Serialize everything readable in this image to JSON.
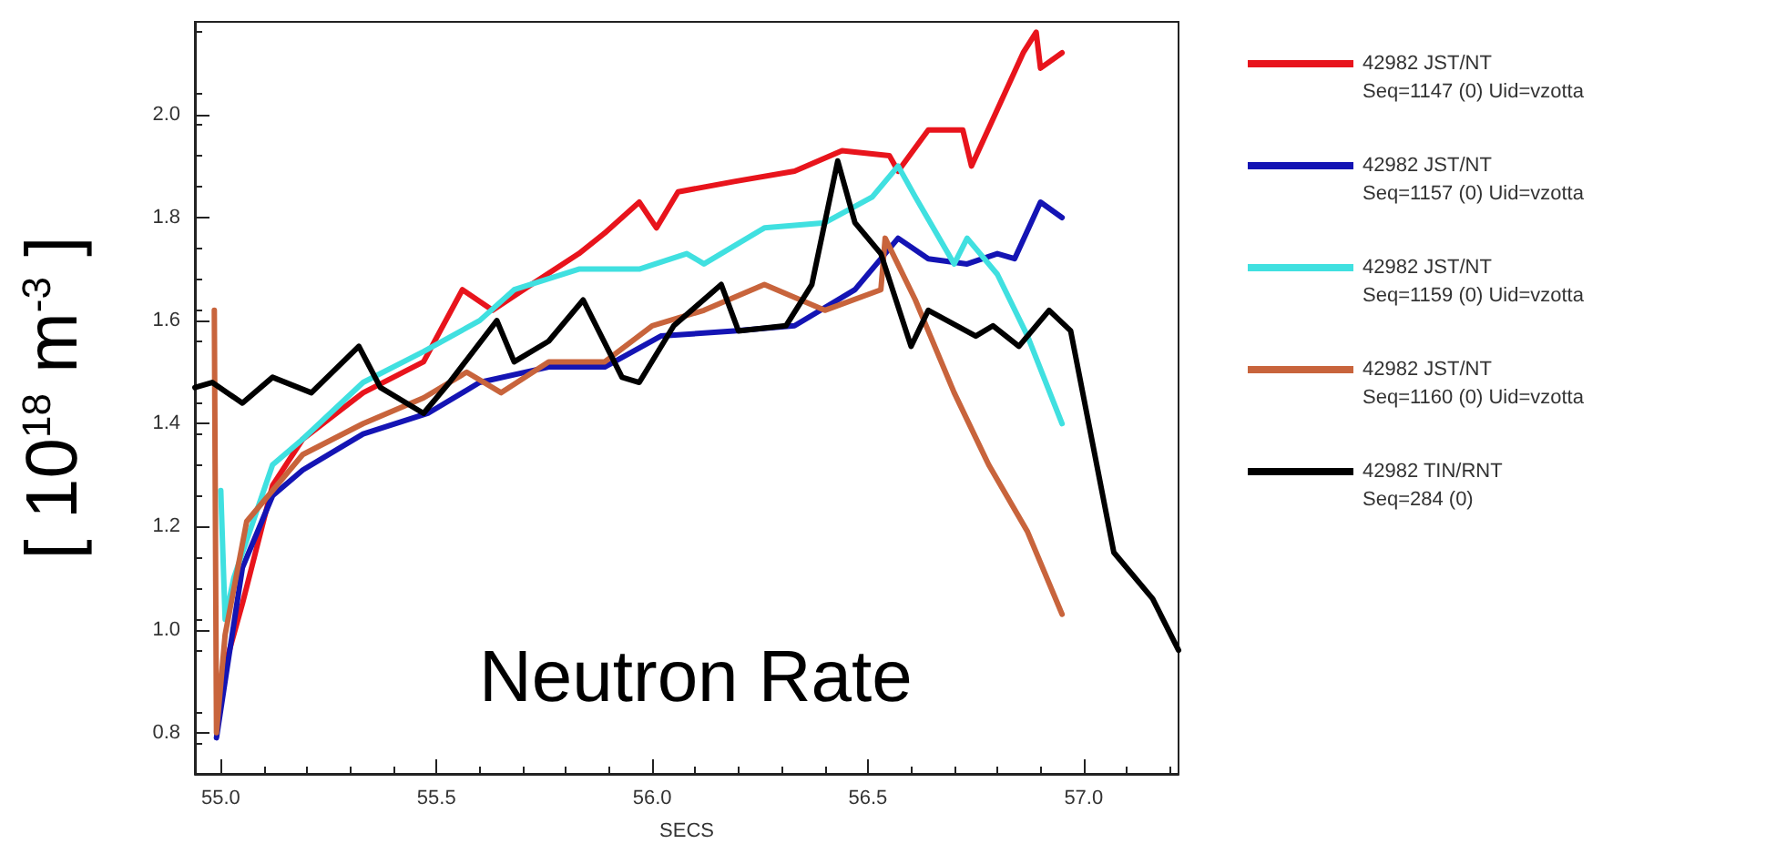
{
  "chart_data": {
    "type": "line",
    "xlabel": "SECS",
    "ylabel": "[ 10$^{18}$ m$^{-3}$ ]",
    "annotations": [
      "Neutron Rate",
      "Seq=1147 (0) Uid=vzotta",
      "Seq=1157 (0) Uid=vzotta",
      "Seq=1159 (0) Uid=vzotta",
      "Seq=1160 (0) Uid=vzotta",
      "Seq=284 (0)"
    ],
    "xlim": [
      54.94,
      57.22
    ],
    "ylim": [
      0.72,
      2.18
    ],
    "xticks": [
      {
        "value": 55,
        "label": "55.0"
      },
      55.5,
      {
        "value": 56,
        "label": "56.0"
      },
      56.5,
      {
        "value": 57,
        "label": "57.0"
      }
    ],
    "yticks": [
      0.8,
      {
        "value": 1,
        "label": "1.0"
      },
      1.2,
      1.4,
      1.6,
      1.8,
      {
        "value": 2,
        "label": "2.0"
      }
    ],
    "grid": false,
    "legend": "right",
    "marker": "none",
    "line_style": "solid",
    "series": [
      {
        "name": "42982 JST/NT",
        "color": "#e8141c",
        "x": [
          55.0,
          55.05,
          55.12,
          55.19,
          55.33,
          55.47,
          55.56,
          55.63,
          55.72,
          55.83,
          55.89,
          55.97,
          56.01,
          56.06,
          56.19,
          56.33,
          56.44,
          56.55,
          56.57,
          56.64,
          56.72,
          56.74,
          56.8,
          56.86,
          56.89,
          56.9,
          56.95
        ],
        "values": [
          0.9,
          1.05,
          1.28,
          1.37,
          1.46,
          1.52,
          1.66,
          1.62,
          1.67,
          1.73,
          1.77,
          1.83,
          1.78,
          1.85,
          1.87,
          1.89,
          1.93,
          1.92,
          1.89,
          1.97,
          1.97,
          1.9,
          2.01,
          2.12,
          2.16,
          2.09,
          2.12
        ]
      },
      {
        "name": "42982 JST/NT",
        "color": "#1414b4",
        "x": [
          54.99,
          55.05,
          55.12,
          55.19,
          55.33,
          55.48,
          55.6,
          55.76,
          55.89,
          56.02,
          56.19,
          56.33,
          56.47,
          56.57,
          56.64,
          56.73,
          56.8,
          56.84,
          56.9,
          56.95
        ],
        "values": [
          0.79,
          1.12,
          1.26,
          1.31,
          1.38,
          1.42,
          1.48,
          1.51,
          1.51,
          1.57,
          1.58,
          1.59,
          1.66,
          1.76,
          1.72,
          1.71,
          1.73,
          1.72,
          1.83,
          1.8
        ]
      },
      {
        "name": "42982 JST/NT",
        "color": "#40e0e0",
        "x": [
          55.0,
          55.01,
          55.03,
          55.12,
          55.19,
          55.33,
          55.47,
          55.6,
          55.68,
          55.83,
          55.97,
          56.08,
          56.12,
          56.26,
          56.4,
          56.51,
          56.57,
          56.61,
          56.7,
          56.73,
          56.8,
          56.87,
          56.95
        ],
        "values": [
          1.27,
          1.02,
          1.1,
          1.32,
          1.37,
          1.48,
          1.54,
          1.6,
          1.66,
          1.7,
          1.7,
          1.73,
          1.71,
          1.78,
          1.79,
          1.84,
          1.9,
          1.84,
          1.71,
          1.76,
          1.69,
          1.57,
          1.4
        ]
      },
      {
        "name": "42982 JST/NT",
        "color": "#c8643c",
        "x": [
          54.985,
          54.99,
          55.01,
          55.06,
          55.19,
          55.33,
          55.47,
          55.57,
          55.65,
          55.76,
          55.89,
          56.0,
          56.12,
          56.26,
          56.4,
          56.53,
          56.54,
          56.61,
          56.7,
          56.78,
          56.87,
          56.95
        ],
        "values": [
          1.62,
          0.8,
          0.99,
          1.21,
          1.34,
          1.4,
          1.45,
          1.5,
          1.46,
          1.52,
          1.52,
          1.59,
          1.62,
          1.67,
          1.62,
          1.66,
          1.76,
          1.64,
          1.46,
          1.32,
          1.19,
          1.03
        ]
      },
      {
        "name": "42982 TIN/RNT",
        "color": "#000000",
        "x": [
          54.94,
          54.98,
          55.05,
          55.12,
          55.21,
          55.32,
          55.37,
          55.47,
          55.53,
          55.64,
          55.68,
          55.76,
          55.84,
          55.93,
          55.97,
          56.05,
          56.16,
          56.2,
          56.31,
          56.37,
          56.43,
          56.47,
          56.53,
          56.6,
          56.64,
          56.75,
          56.79,
          56.85,
          56.92,
          56.97,
          57.07,
          57.16,
          57.22
        ],
        "values": [
          1.47,
          1.48,
          1.44,
          1.49,
          1.46,
          1.55,
          1.47,
          1.42,
          1.48,
          1.6,
          1.52,
          1.56,
          1.64,
          1.49,
          1.48,
          1.59,
          1.67,
          1.58,
          1.59,
          1.67,
          1.91,
          1.79,
          1.73,
          1.55,
          1.62,
          1.57,
          1.59,
          1.55,
          1.62,
          1.58,
          1.15,
          1.06,
          0.96
        ]
      }
    ]
  }
}
